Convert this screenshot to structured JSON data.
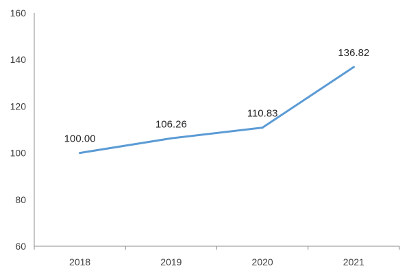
{
  "chart_data": {
    "type": "line",
    "title": "",
    "xlabel": "",
    "ylabel": "",
    "categories": [
      "2018",
      "2019",
      "2020",
      "2021"
    ],
    "series": [
      {
        "values": [
          100.0,
          106.26,
          110.83,
          136.82
        ],
        "labels": [
          "100.00",
          "106.26",
          "110.83",
          "136.82"
        ],
        "color": "#5B9BD5"
      }
    ],
    "ylim": [
      60,
      160
    ],
    "yticks": [
      60,
      80,
      100,
      120,
      140,
      160
    ],
    "ytick_labels": [
      "60",
      "80",
      "100",
      "120",
      "140",
      "160"
    ],
    "grid": false,
    "legend": "none",
    "colors": {
      "axis": "#8C8C8C",
      "text": "#404040"
    }
  }
}
